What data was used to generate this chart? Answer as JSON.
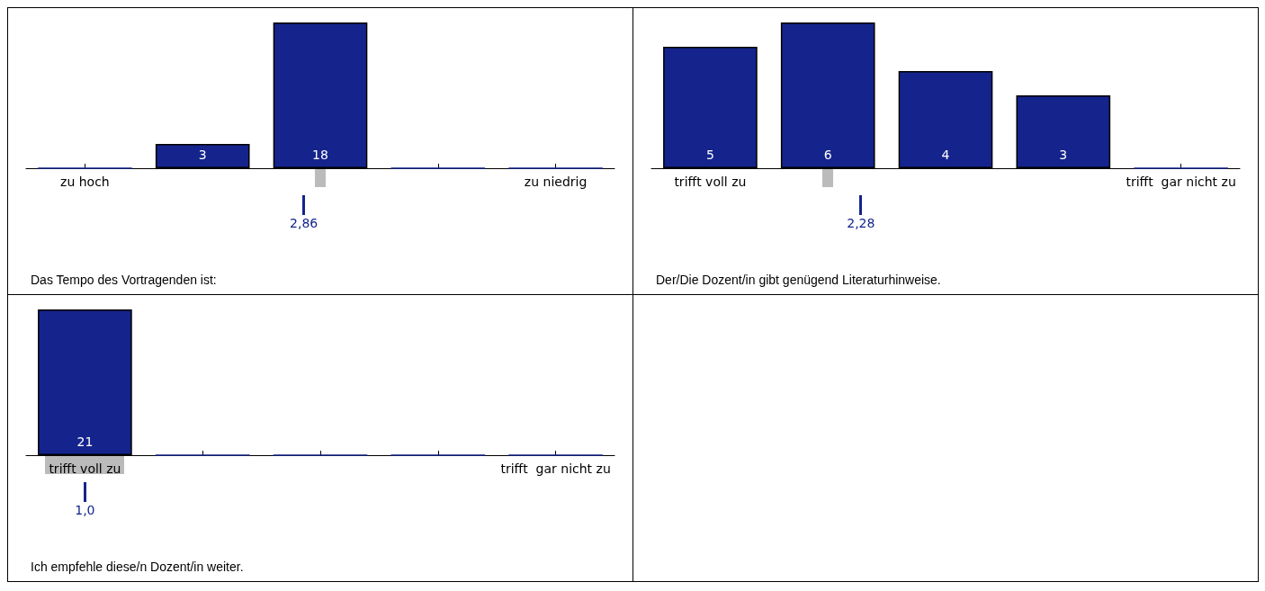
{
  "chart_data": [
    {
      "type": "bar",
      "title": "Das Tempo des Vortragenden ist:",
      "categories": [
        "zu hoch",
        null,
        null,
        null,
        "zu niedrig"
      ],
      "values": [
        0,
        3,
        18,
        0,
        0
      ],
      "value_labels": [
        null,
        "3",
        "18",
        null,
        null
      ],
      "color": "#14248c",
      "grid": false,
      "annotations": [
        "2,86"
      ]
    },
    {
      "type": "bar",
      "title": "Der/Die Dozent/in gibt genügend Literaturhinweise.",
      "categories": [
        "trifft voll zu",
        null,
        null,
        null,
        "trifft  gar nicht zu"
      ],
      "values": [
        5,
        6,
        4,
        3,
        0
      ],
      "value_labels": [
        "5",
        "6",
        "4",
        "3",
        null
      ],
      "color": "#14248c",
      "grid": false,
      "annotations": [
        "2,28"
      ]
    },
    {
      "type": "bar",
      "title": "Ich empfehle diese/n Dozent/in weiter.",
      "categories": [
        "trifft voll zu",
        null,
        null,
        null,
        "trifft  gar nicht zu"
      ],
      "values": [
        21,
        0,
        0,
        0,
        0
      ],
      "value_labels": [
        "21",
        null,
        null,
        null,
        null
      ],
      "color": "#14248c",
      "grid": false,
      "annotations": [
        "1,0"
      ]
    }
  ]
}
